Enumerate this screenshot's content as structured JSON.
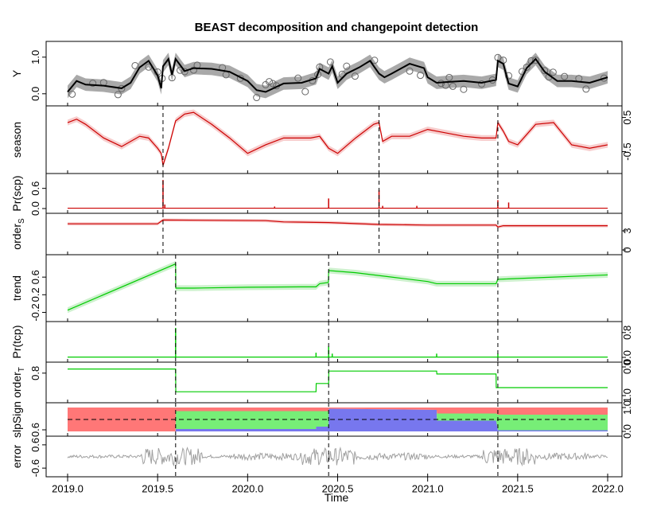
{
  "chart_data": {
    "type": "line",
    "title": "BEAST decomposition and changepoint detection",
    "xlabel": "Time",
    "x_ticks": [
      "2019.0",
      "2019.5",
      "2020.0",
      "2020.5",
      "2021.0",
      "2021.5",
      "2022.0"
    ],
    "x_range": [
      2019.0,
      2022.0
    ],
    "season_changepoints": [
      2019.53,
      2020.73,
      2021.39
    ],
    "trend_changepoints": [
      2019.6,
      2020.45,
      2021.39
    ],
    "panels": [
      {
        "key": "Y",
        "ylabel": "Y",
        "axis_side": "left",
        "ticks": [
          "0.0",
          "1.0"
        ],
        "ylim": [
          -0.2,
          1.3
        ],
        "series": [
          {
            "color": "#000000",
            "band": "#a0a0a0",
            "x": [
              2019.0,
              2019.05,
              2019.1,
              2019.2,
              2019.3,
              2019.35,
              2019.4,
              2019.45,
              2019.5,
              2019.52,
              2019.53,
              2019.56,
              2019.58,
              2019.6,
              2019.65,
              2019.7,
              2019.8,
              2019.9,
              2020.0,
              2020.05,
              2020.1,
              2020.2,
              2020.3,
              2020.38,
              2020.4,
              2020.45,
              2020.47,
              2020.5,
              2020.55,
              2020.62,
              2020.68,
              2020.73,
              2020.76,
              2020.8,
              2020.9,
              2020.98,
              2021.0,
              2021.05,
              2021.1,
              2021.2,
              2021.3,
              2021.38,
              2021.39,
              2021.42,
              2021.45,
              2021.5,
              2021.55,
              2021.6,
              2021.65,
              2021.72,
              2021.8,
              2021.9,
              2022.0
            ],
            "y": [
              0.05,
              0.35,
              0.25,
              0.22,
              0.15,
              0.3,
              0.72,
              0.9,
              0.5,
              0.15,
              0.75,
              0.95,
              0.52,
              0.95,
              0.62,
              0.7,
              0.68,
              0.6,
              0.35,
              0.1,
              0.05,
              0.28,
              0.3,
              0.42,
              0.68,
              0.55,
              0.75,
              0.3,
              0.55,
              0.72,
              0.9,
              0.55,
              0.45,
              0.55,
              0.82,
              0.7,
              0.45,
              0.3,
              0.32,
              0.35,
              0.3,
              0.38,
              0.9,
              0.82,
              0.28,
              0.2,
              0.7,
              0.95,
              0.6,
              0.35,
              0.35,
              0.3,
              0.45
            ]
          }
        ],
        "scatter_points": true
      },
      {
        "key": "season",
        "ylabel": "season",
        "axis_side": "right",
        "ticks": [
          "0.5",
          "-0.5"
        ],
        "ylim": [
          -1.0,
          0.7
        ],
        "series": [
          {
            "color": "#cc0000",
            "band": "#f6c8c8",
            "x": [
              2019.0,
              2019.05,
              2019.1,
              2019.2,
              2019.3,
              2019.4,
              2019.45,
              2019.5,
              2019.52,
              2019.53,
              2019.56,
              2019.6,
              2019.65,
              2019.7,
              2019.8,
              2019.9,
              2020.0,
              2020.1,
              2020.2,
              2020.3,
              2020.35,
              2020.4,
              2020.45,
              2020.5,
              2020.6,
              2020.7,
              2020.73,
              2020.75,
              2020.8,
              2020.9,
              2021.0,
              2021.1,
              2021.2,
              2021.3,
              2021.38,
              2021.39,
              2021.42,
              2021.45,
              2021.5,
              2021.6,
              2021.7,
              2021.8,
              2021.9,
              2022.0
            ],
            "y": [
              0.35,
              0.45,
              0.3,
              -0.1,
              -0.35,
              -0.05,
              -0.1,
              -0.4,
              -0.55,
              -0.9,
              -0.4,
              0.4,
              0.6,
              0.65,
              0.3,
              -0.1,
              -0.55,
              -0.3,
              -0.1,
              -0.1,
              -0.1,
              -0.05,
              -0.4,
              -0.55,
              -0.1,
              0.3,
              0.35,
              -0.2,
              -0.05,
              -0.05,
              0.15,
              0.05,
              -0.05,
              -0.1,
              -0.1,
              0.35,
              0.1,
              -0.2,
              -0.3,
              0.3,
              0.35,
              -0.3,
              -0.4,
              -0.3
            ]
          }
        ]
      },
      {
        "key": "scp",
        "ylabel": "Pr(scp)",
        "axis_side": "left",
        "ticks": [
          "0.0",
          "0.6"
        ],
        "ylim": [
          0,
          0.9
        ],
        "series": [
          {
            "color": "#cc0000",
            "band": null,
            "spikes": [
              [
                2019.53,
                0.85
              ],
              [
                2019.54,
                0.12
              ],
              [
                2020.15,
                0.06
              ],
              [
                2020.45,
                0.3
              ],
              [
                2020.73,
                0.55
              ],
              [
                2020.75,
                0.08
              ],
              [
                2020.94,
                0.08
              ],
              [
                2021.39,
                0.25
              ],
              [
                2021.45,
                0.18
              ]
            ]
          }
        ]
      },
      {
        "key": "orders",
        "ylabel": "order_S",
        "axis_side": "right",
        "ticks": [
          "3",
          "0"
        ],
        "ylim": [
          0,
          5
        ],
        "series": [
          {
            "color": "#cc0000",
            "band": "#f6c8c8",
            "x": [
              2019.0,
              2019.5,
              2019.53,
              2020.1,
              2020.2,
              2020.45,
              2020.73,
              2021.0,
              2021.38,
              2021.39,
              2021.42,
              2021.5,
              2022.0
            ],
            "y": [
              4.1,
              4.1,
              4.7,
              4.6,
              4.4,
              4.3,
              4.0,
              3.9,
              3.9,
              3.6,
              3.8,
              3.8,
              3.8
            ]
          }
        ]
      },
      {
        "key": "trend",
        "ylabel": "trend",
        "axis_side": "left",
        "ticks": [
          "-0.2",
          "0.2",
          "0.6"
        ],
        "ylim": [
          -0.3,
          1.0
        ],
        "series": [
          {
            "color": "#00cc00",
            "band": "#c8f0c8",
            "x": [
              2019.0,
              2019.6,
              2019.601,
              2019.7,
              2020.0,
              2020.3,
              2020.38,
              2020.4,
              2020.449,
              2020.45,
              2020.6,
              2020.8,
              2021.0,
              2021.05,
              2021.1,
              2021.38,
              2021.39,
              2021.45,
              2021.7,
              2022.0
            ],
            "y": [
              -0.15,
              0.9,
              0.35,
              0.35,
              0.37,
              0.38,
              0.38,
              0.45,
              0.48,
              0.75,
              0.7,
              0.6,
              0.5,
              0.45,
              0.45,
              0.45,
              0.55,
              0.56,
              0.6,
              0.65
            ]
          }
        ]
      },
      {
        "key": "tcp",
        "ylabel": "Pr(tcp)",
        "axis_side": "right",
        "ticks": [
          "0.8",
          "0.0"
        ],
        "ylim": [
          0,
          1
        ],
        "series": [
          {
            "color": "#00cc00",
            "band": null,
            "spikes": [
              [
                2019.6,
                0.95
              ],
              [
                2020.38,
                0.15
              ],
              [
                2020.45,
                0.35
              ],
              [
                2020.47,
                0.12
              ],
              [
                2021.05,
                0.12
              ],
              [
                2021.39,
                0.12
              ]
            ]
          }
        ]
      },
      {
        "key": "ordert",
        "ylabel": "order_T",
        "axis_side": "left",
        "ticks": [
          "0.8"
        ],
        "ylim": [
          0.2,
          0.95
        ],
        "series": [
          {
            "color": "#00cc00",
            "band": null,
            "x": [
              2019.0,
              2019.6,
              2019.601,
              2020.38,
              2020.381,
              2020.45,
              2020.451,
              2021.05,
              2021.051,
              2021.38,
              2021.381,
              2022.0
            ],
            "y": [
              0.9,
              0.9,
              0.35,
              0.35,
              0.55,
              0.55,
              0.85,
              0.85,
              0.78,
              0.78,
              0.45,
              0.45
            ]
          }
        ]
      },
      {
        "key": "slpsgn",
        "ylabel": "slpSign",
        "axis_side": "right",
        "ticks": [
          "1.0",
          "0.0"
        ],
        "ylim": [
          0,
          1
        ],
        "stacked": [
          {
            "name": "",
            "color": "#ff7777"
          },
          {
            "name": "",
            "color": "#77ee77"
          },
          {
            "name": "",
            "color": "#7777ee"
          }
        ],
        "x": [
          2019.0,
          2019.6,
          2019.601,
          2020.38,
          2020.381,
          2020.45,
          2020.451,
          2021.05,
          2021.051,
          2021.38,
          2021.39,
          2022.0
        ],
        "pos": [
          0.0,
          0.0,
          0.1,
          0.1,
          0.2,
          0.2,
          0.95,
          0.9,
          0.45,
          0.45,
          0.05,
          0.05
        ],
        "zero": [
          0.0,
          0.0,
          0.75,
          0.75,
          0.65,
          0.65,
          0.0,
          0.0,
          0.3,
          0.3,
          0.65,
          0.65
        ],
        "dashed_ref": 0.5
      },
      {
        "key": "error",
        "ylabel": "error",
        "axis_side": "left",
        "ticks": [
          "-0.6",
          "0.6"
        ],
        "ylim": [
          -0.8,
          0.8
        ],
        "series": [
          {
            "color": "#a0a0a0",
            "band": null,
            "noise": true
          }
        ]
      }
    ],
    "right_ticks_extra": {
      "slpsgn_left": "0.6",
      "ordert_right": [
        "0.0",
        "1.0"
      ]
    }
  },
  "labels": {
    "title": "BEAST decomposition and changepoint detection",
    "xlabel": "Time",
    "y_Y": "Y",
    "y_season": "season",
    "y_scp": "Pr(scp)",
    "y_orders": "order",
    "y_orders_sub": "S",
    "y_trend": "trend",
    "y_tcp": "Pr(tcp)",
    "y_ordert": "order",
    "y_ordert_sub": "T",
    "y_slpsgn": "slpSign",
    "y_error": "error"
  }
}
